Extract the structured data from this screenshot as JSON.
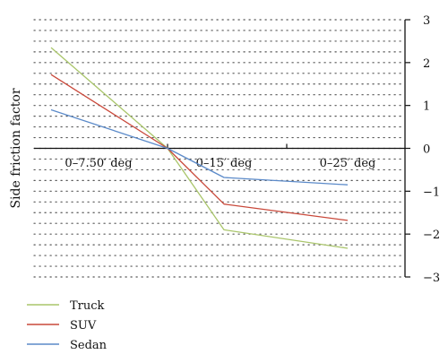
{
  "chart_data": {
    "type": "line",
    "title": "",
    "xlabel": "",
    "ylabel": "Side friction factor",
    "x": [
      "0",
      "0–7.50′ deg",
      "0–15′ deg",
      "0–25′ deg"
    ],
    "categories": [
      "0–7.50′ deg",
      "0–15′ deg",
      "0–25′ deg"
    ],
    "ylim": [
      -3,
      3
    ],
    "yticks": [
      "3",
      "2",
      "1",
      "0",
      "−1",
      "−2",
      "−3"
    ],
    "y_axis_position": "right",
    "grid": "dotted",
    "legend_position": "bottom-left",
    "series": [
      {
        "name": "Truck",
        "color": "#a9c56a",
        "values": [
          2.35,
          0,
          -1.9,
          -2.33
        ]
      },
      {
        "name": "SUV",
        "color": "#c9483a",
        "values": [
          1.72,
          0,
          -1.3,
          -1.68
        ]
      },
      {
        "name": "Sedan",
        "color": "#5b8ac9",
        "values": [
          0.9,
          0,
          -0.68,
          -0.85
        ]
      }
    ]
  }
}
